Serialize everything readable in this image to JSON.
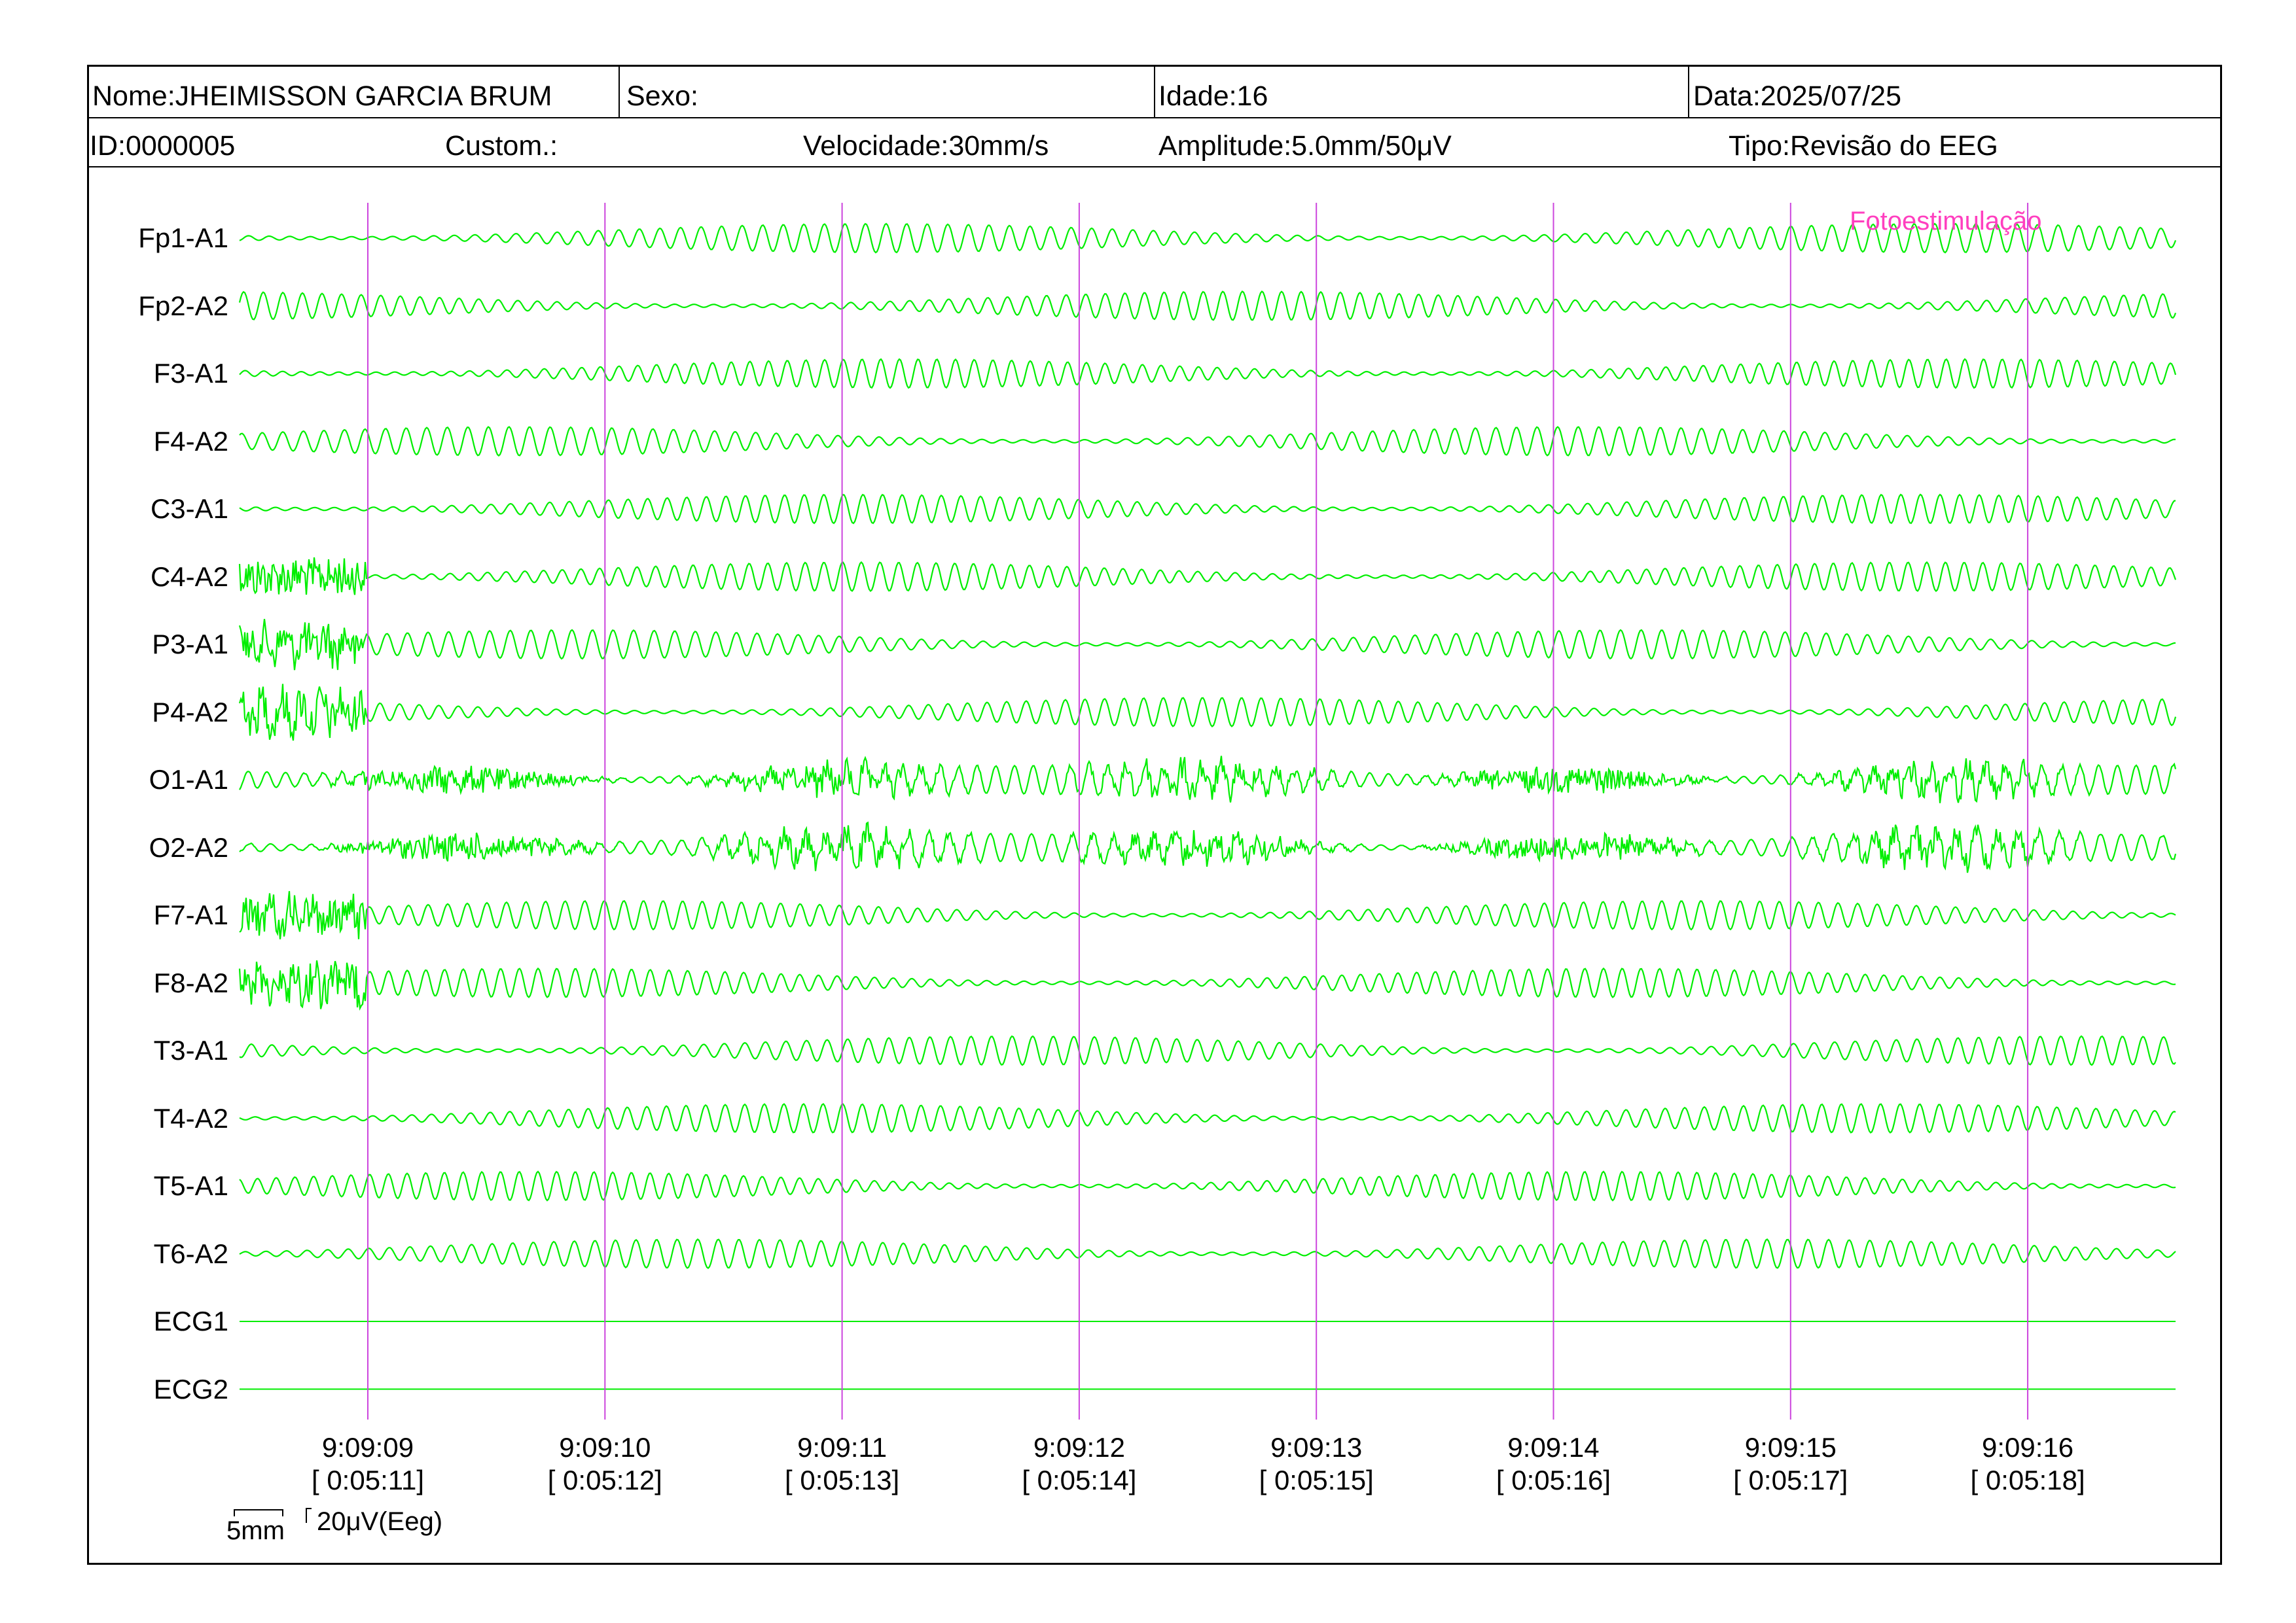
{
  "header": {
    "name": "Nome:JHEIMISSON GARCIA BRUM",
    "sex": "Sexo:",
    "age": "Idade:16",
    "date": "Data:2025/07/25",
    "id": "ID:0000005",
    "custom": "Custom.:",
    "speed": "Velocidade:30mm/s",
    "amplitude": "Amplitude:5.0mm/50μV",
    "type": "Tipo:Revisão do EEG"
  },
  "channels": [
    "Fp1-A1",
    "Fp2-A2",
    "F3-A1",
    "F4-A2",
    "C3-A1",
    "C4-A2",
    "P3-A1",
    "P4-A2",
    "O1-A1",
    "O2-A2",
    "F7-A1",
    "F8-A2",
    "T3-A1",
    "T4-A2",
    "T5-A1",
    "T6-A2",
    "ECG1",
    "ECG2"
  ],
  "time_marks": [
    {
      "clock": "9:09:09",
      "elapsed": "[ 0:05:11]"
    },
    {
      "clock": "9:09:10",
      "elapsed": "[ 0:05:12]"
    },
    {
      "clock": "9:09:11",
      "elapsed": "[ 0:05:13]"
    },
    {
      "clock": "9:09:12",
      "elapsed": "[ 0:05:14]"
    },
    {
      "clock": "9:09:13",
      "elapsed": "[ 0:05:15]"
    },
    {
      "clock": "9:09:14",
      "elapsed": "[ 0:05:16]"
    },
    {
      "clock": "9:09:15",
      "elapsed": "[ 0:05:17]"
    },
    {
      "clock": "9:09:16",
      "elapsed": "[ 0:05:18]"
    }
  ],
  "annotation": "Fotoestimulação",
  "scale": {
    "time": "5mm",
    "amplitude": "20μV(Eeg)"
  },
  "colors": {
    "trace": "#00ee00",
    "time_line": "#cc44dd",
    "annotation": "#ff3fbf",
    "frame": "#000000"
  }
}
